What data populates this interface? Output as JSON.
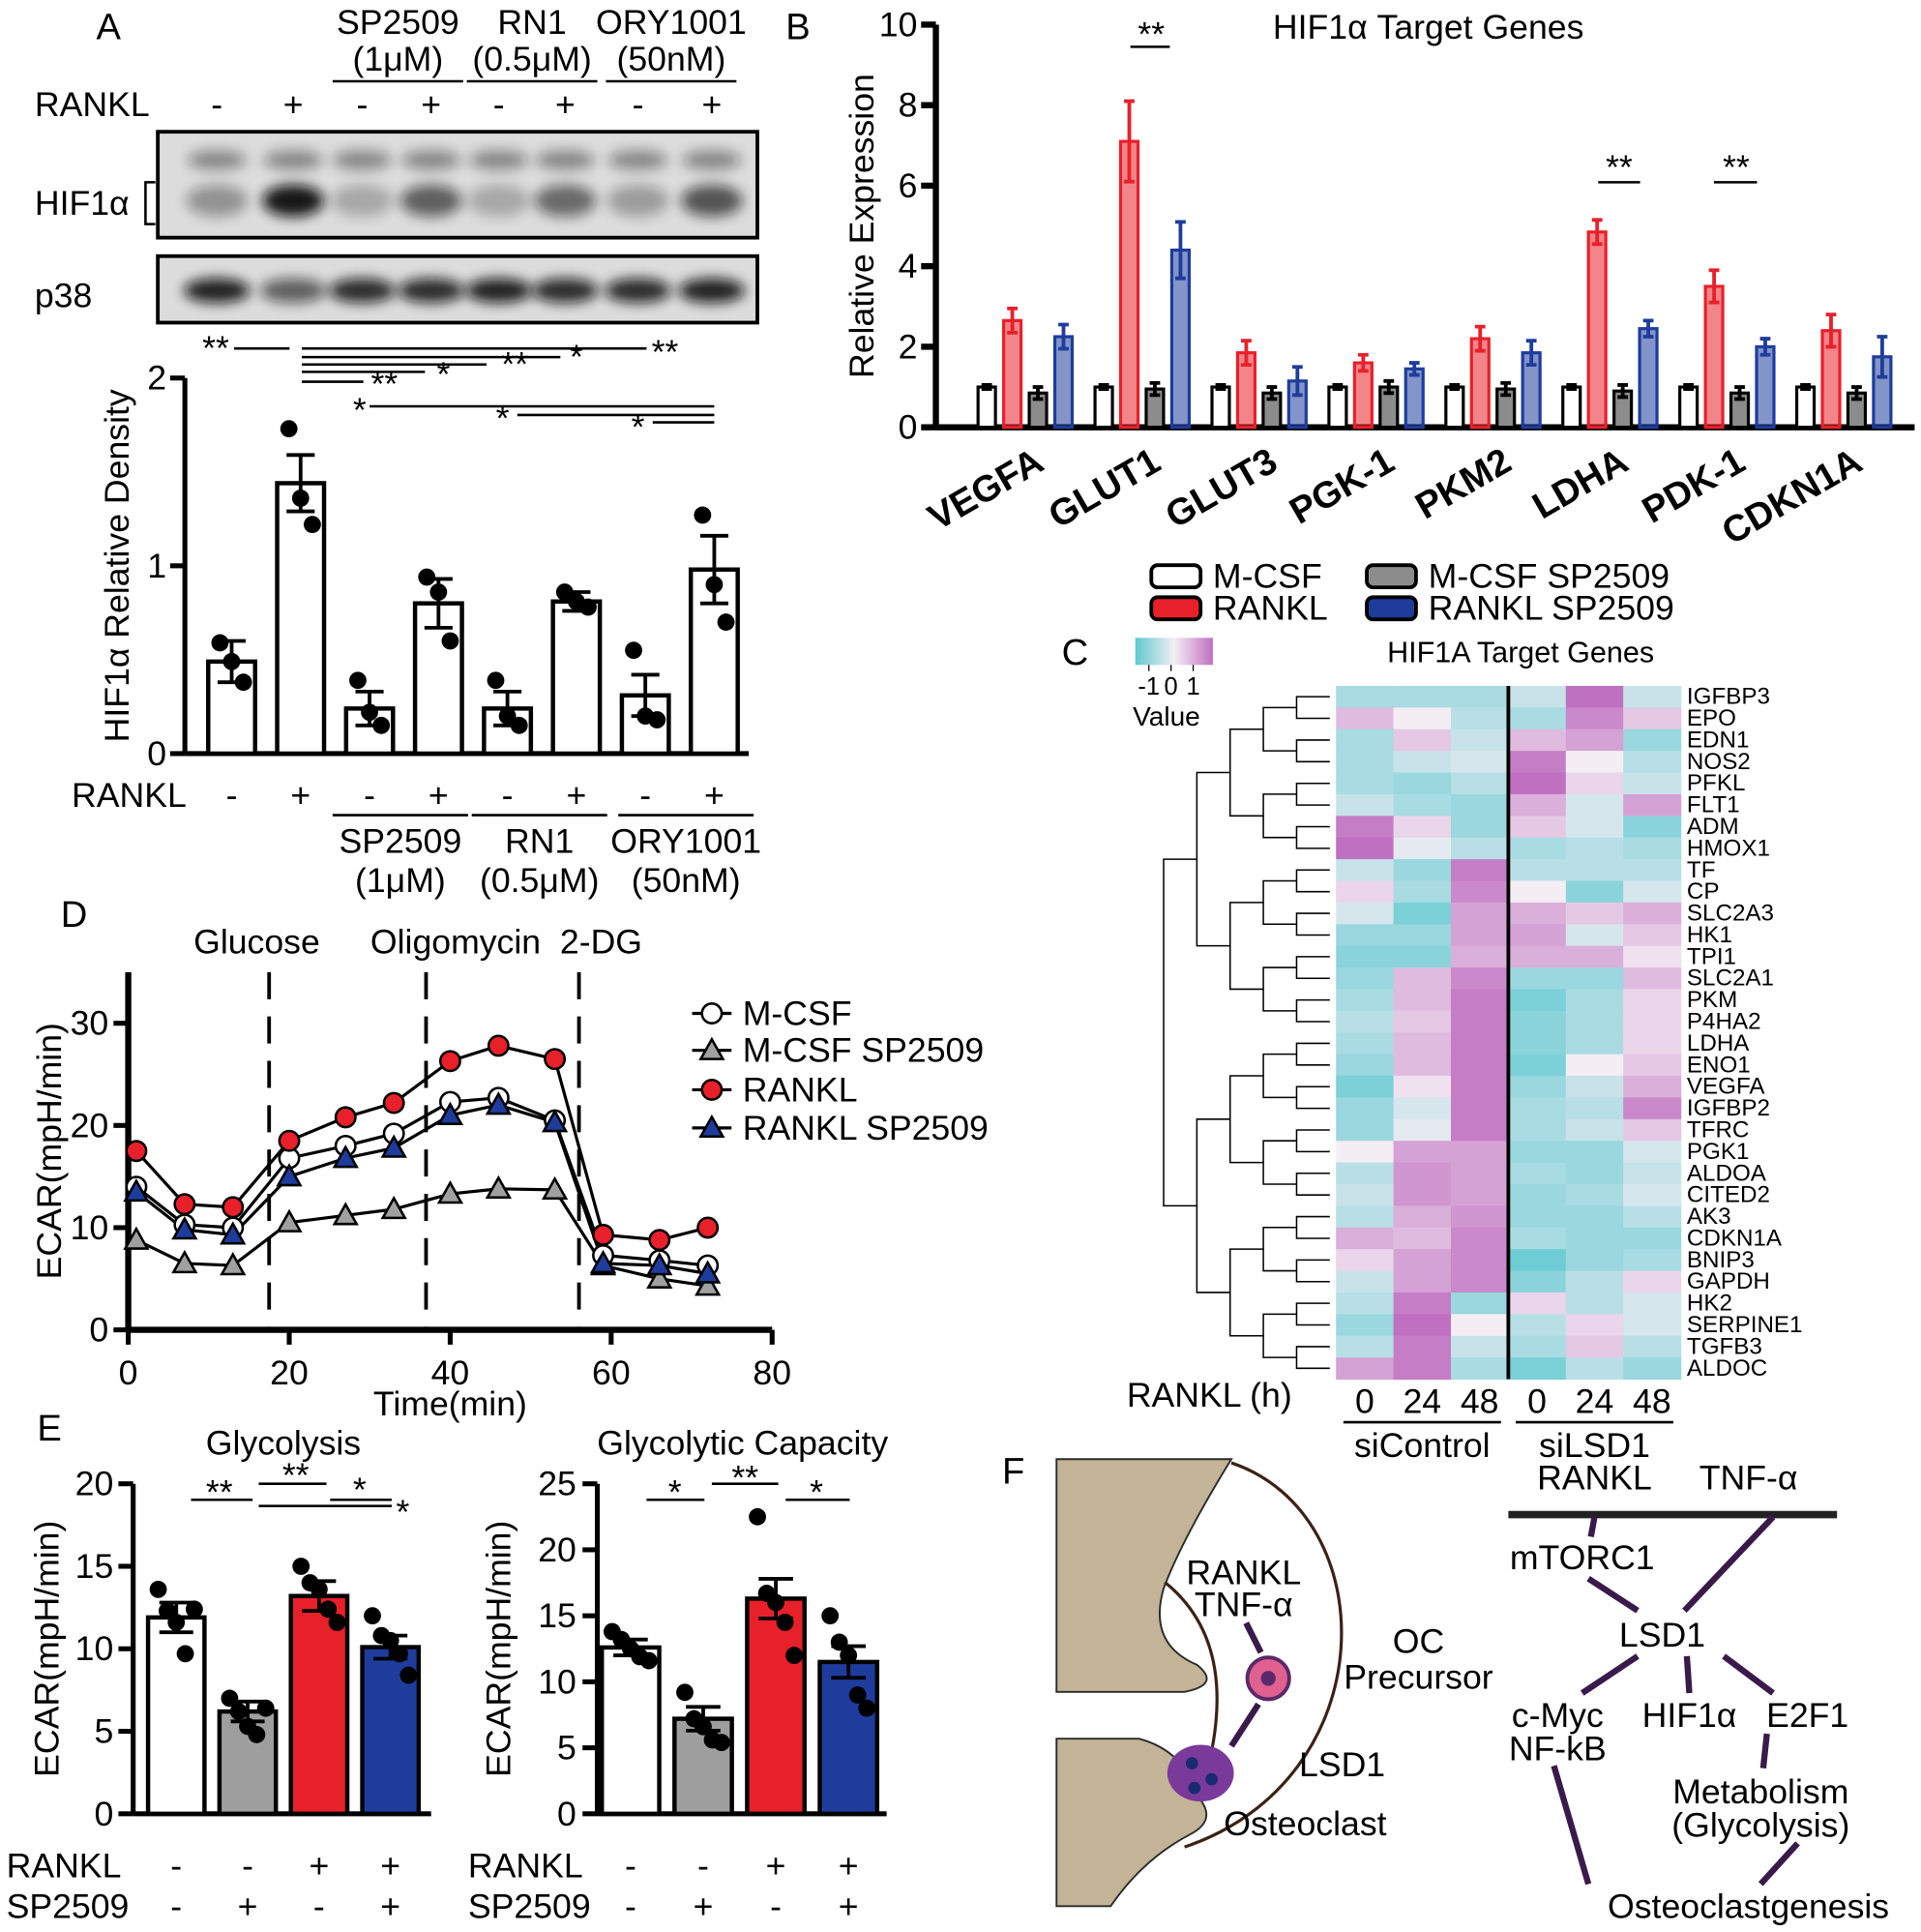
{
  "panel_labels": [
    "A",
    "B",
    "C",
    "D",
    "E",
    "F"
  ],
  "blot": {
    "lane_label": "RANKL",
    "lanes": [
      "-",
      "+",
      "-",
      "+",
      "-",
      "+",
      "-",
      "+"
    ],
    "treatments": [
      {
        "name": "SP2509",
        "dose": "(1μM)"
      },
      {
        "name": "RN1",
        "dose": "(0.5μM)"
      },
      {
        "name": "ORY1001",
        "dose": "(50nM)"
      }
    ],
    "bands": [
      "HIF1α",
      "p38"
    ]
  },
  "chart_data": [
    {
      "type": "bar",
      "ylabel": "HIF1α Relative Density",
      "row_label": "RANKL",
      "categories": [
        "-",
        "+",
        "-",
        "+",
        "-",
        "+",
        "-",
        "+"
      ],
      "groups": [
        {
          "name": "SP2509",
          "dose": "(1μM)"
        },
        {
          "name": "RN1",
          "dose": "(0.5μM)"
        },
        {
          "name": "ORY1001",
          "dose": "(50nM)"
        }
      ],
      "series": [
        {
          "color": "#ffffff",
          "values": [
            0.49,
            1.44,
            0.24,
            0.8,
            0.24,
            0.81,
            0.31,
            0.98
          ],
          "errors": [
            0.11,
            0.15,
            0.09,
            0.13,
            0.09,
            0.05,
            0.11,
            0.18
          ],
          "points": [
            [
              0.59,
              0.49,
              0.38
            ],
            [
              1.73,
              1.36,
              1.22
            ],
            [
              0.39,
              0.22,
              0.15
            ],
            [
              0.94,
              0.86,
              0.6
            ],
            [
              0.39,
              0.2,
              0.15
            ],
            [
              0.86,
              0.81,
              0.78
            ],
            [
              0.55,
              0.2,
              0.18
            ],
            [
              1.27,
              0.9,
              0.7
            ]
          ]
        }
      ],
      "ylim": [
        0,
        2
      ],
      "yticks": [
        0,
        1,
        2
      ],
      "significance": [
        "**",
        "**",
        "*",
        "**",
        "*",
        "**",
        "*",
        "*",
        "*"
      ]
    },
    {
      "type": "bar",
      "title": "HIF1α Target Genes",
      "ylabel": "Relative Expression",
      "categories": [
        "VEGFA",
        "GLUT1",
        "GLUT3",
        "PGK-1",
        "PKM2",
        "LDHA",
        "PDK-1",
        "CDKN1A"
      ],
      "series": [
        {
          "name": "M-CSF",
          "color": "#ffffff",
          "values": [
            1,
            1,
            1,
            1,
            1,
            1,
            1,
            1
          ],
          "errors": [
            0.05,
            0.05,
            0.05,
            0.05,
            0.05,
            0.05,
            0.05,
            0.05
          ]
        },
        {
          "name": "RANKL",
          "color": "#e8202a",
          "values": [
            2.65,
            7.1,
            1.85,
            1.6,
            2.2,
            4.85,
            3.5,
            2.4
          ],
          "errors": [
            0.3,
            1.0,
            0.3,
            0.2,
            0.3,
            0.3,
            0.4,
            0.4
          ]
        },
        {
          "name": "M-CSF SP2509",
          "color": "#8c8c8c",
          "values": [
            0.85,
            0.95,
            0.85,
            1.0,
            0.95,
            0.9,
            0.85,
            0.85
          ],
          "errors": [
            0.15,
            0.15,
            0.15,
            0.15,
            0.15,
            0.15,
            0.15,
            0.15
          ]
        },
        {
          "name": "RANKL SP2509",
          "color": "#1e3c9c",
          "values": [
            2.25,
            4.4,
            1.15,
            1.45,
            1.85,
            2.45,
            2.0,
            1.75
          ],
          "errors": [
            0.3,
            0.7,
            0.35,
            0.15,
            0.3,
            0.2,
            0.2,
            0.5
          ]
        }
      ],
      "ylim": [
        0,
        10
      ],
      "yticks": [
        0,
        2,
        4,
        6,
        8,
        10
      ],
      "significance": [
        "**",
        "**",
        "**"
      ]
    },
    {
      "type": "heatmap",
      "title": "HIF1A Target Genes",
      "rows": [
        "IGFBP3",
        "EPO",
        "EDN1",
        "NOS2",
        "PFKL",
        "FLT1",
        "ADM",
        "HMOX1",
        "TF",
        "CP",
        "SLC2A3",
        "HK1",
        "TPI1",
        "SLC2A1",
        "PKM",
        "P4HA2",
        "LDHA",
        "ENO1",
        "VEGFA",
        "IGFBP2",
        "TFRC",
        "PGK1",
        "ALDOA",
        "CITED2",
        "AK3",
        "CDKN1A",
        "BNIP3",
        "GAPDH",
        "HK2",
        "SERPINE1",
        "TGFB3",
        "ALDOC"
      ],
      "columns": [
        "0",
        "24",
        "48",
        "0",
        "24",
        "48"
      ],
      "column_title": "RANKL (h)",
      "column_groups": [
        "siControl",
        "siLSD1"
      ],
      "values": [
        [
          -0.5,
          -0.5,
          -0.5,
          -0.3,
          1,
          -0.3
        ],
        [
          0.4,
          0,
          -0.4,
          -0.5,
          0.8,
          0.3
        ],
        [
          -0.5,
          0.3,
          -0.3,
          0.4,
          0.6,
          -0.6
        ],
        [
          -0.5,
          -0.3,
          -0.2,
          0.9,
          0,
          -0.4
        ],
        [
          -0.5,
          -0.6,
          -0.4,
          1,
          0.2,
          -0.3
        ],
        [
          -0.3,
          -0.5,
          -0.6,
          0.5,
          -0.2,
          0.6
        ],
        [
          0.9,
          0.2,
          -0.6,
          0.3,
          -0.2,
          -0.7
        ],
        [
          1,
          -0.1,
          -0.4,
          -0.5,
          -0.4,
          -0.5
        ],
        [
          -0.3,
          -0.6,
          0.9,
          -0.4,
          -0.4,
          -0.4
        ],
        [
          0.2,
          -0.5,
          0.8,
          0,
          -0.7,
          -0.2
        ],
        [
          -0.2,
          -0.8,
          0.6,
          0.5,
          0.3,
          0.5
        ],
        [
          -0.6,
          -0.6,
          0.6,
          0.6,
          -0.2,
          0.3
        ],
        [
          -0.7,
          -0.7,
          0.5,
          0.5,
          0.5,
          0.1
        ],
        [
          -0.6,
          0.4,
          0.8,
          -0.6,
          -0.6,
          0.4
        ],
        [
          -0.5,
          0.4,
          0.9,
          -0.8,
          -0.5,
          0.2
        ],
        [
          -0.4,
          0.3,
          0.9,
          -0.7,
          -0.5,
          0.2
        ],
        [
          -0.5,
          0.4,
          0.9,
          -0.7,
          -0.5,
          0.2
        ],
        [
          -0.6,
          0.4,
          0.9,
          -0.8,
          0,
          0.3
        ],
        [
          -0.8,
          0.1,
          0.9,
          -0.6,
          -0.3,
          0.5
        ],
        [
          -0.6,
          -0.2,
          0.9,
          -0.5,
          -0.4,
          0.8
        ],
        [
          -0.6,
          -0.1,
          0.9,
          -0.5,
          -0.3,
          0.3
        ],
        [
          0,
          0.6,
          0.6,
          -0.6,
          -0.6,
          -0.2
        ],
        [
          -0.4,
          0.7,
          0.6,
          -0.5,
          -0.6,
          -0.3
        ],
        [
          -0.3,
          0.7,
          0.6,
          -0.6,
          -0.5,
          -0.2
        ],
        [
          -0.4,
          0.5,
          0.7,
          -0.6,
          -0.6,
          -0.4
        ],
        [
          0.5,
          0.4,
          0.8,
          -0.5,
          -0.6,
          -0.6
        ],
        [
          0.2,
          0.6,
          0.8,
          -0.9,
          -0.6,
          -0.5
        ],
        [
          -0.3,
          0.6,
          0.8,
          -0.7,
          -0.4,
          0.2
        ],
        [
          -0.4,
          0.9,
          -0.6,
          0.2,
          -0.4,
          -0.2
        ],
        [
          -0.6,
          1,
          0,
          -0.4,
          0.2,
          -0.2
        ],
        [
          -0.4,
          0.9,
          -0.3,
          -0.5,
          0.3,
          -0.4
        ],
        [
          0.6,
          0.9,
          -0.5,
          -0.8,
          -0.4,
          -0.6
        ]
      ],
      "clim": [
        -1,
        1
      ],
      "colorbar": {
        "ticks": [
          -1,
          0,
          1
        ],
        "label": "Value"
      }
    },
    {
      "type": "line",
      "xlabel": "Time(min)",
      "ylabel": "ECAR(mpH/min)",
      "x": [
        1,
        7,
        13,
        20,
        27,
        33,
        40,
        46,
        53,
        59,
        66,
        72
      ],
      "series": [
        {
          "name": "M-CSF",
          "color": "#ffffff",
          "marker": "circle",
          "values": [
            14,
            10.3,
            10,
            16.8,
            18,
            19.2,
            22.3,
            22.7,
            20.5,
            7.3,
            6.8,
            6.3
          ]
        },
        {
          "name": "M-CSF SP2509",
          "color": "#a0a0a0",
          "marker": "triangle",
          "values": [
            8.8,
            6.5,
            6.3,
            10.5,
            11.2,
            11.8,
            13.3,
            13.8,
            13.7,
            6.3,
            5,
            4.3
          ]
        },
        {
          "name": "RANKL",
          "color": "#e8202a",
          "marker": "circle",
          "values": [
            17.5,
            12.3,
            12,
            18.5,
            20.8,
            22.2,
            26.3,
            27.8,
            26.5,
            9.3,
            8.8,
            10
          ]
        },
        {
          "name": "RANKL SP2509",
          "color": "#1e3c9c",
          "marker": "triangle",
          "values": [
            13.5,
            9.8,
            9.3,
            15,
            16.8,
            17.8,
            21,
            22,
            20.3,
            6.5,
            6.3,
            5.5
          ]
        }
      ],
      "injections": [
        {
          "x": 17.5,
          "label": "Glucose"
        },
        {
          "x": 37,
          "label": "Oligomycin"
        },
        {
          "x": 56,
          "label": "2-DG"
        }
      ],
      "xlim": [
        0,
        80
      ],
      "xticks": [
        0,
        20,
        40,
        60,
        80
      ],
      "ylim": [
        0,
        35
      ],
      "yticks": [
        0,
        10,
        20,
        30
      ]
    },
    {
      "type": "bar",
      "title": "Glycolysis",
      "ylabel": "ECAR(mpH/min)",
      "rows": [
        {
          "label": "RANKL",
          "signs": [
            "-",
            "-",
            "+",
            "+"
          ]
        },
        {
          "label": "SP2509",
          "signs": [
            "-",
            "+",
            "-",
            "+"
          ]
        }
      ],
      "series": [
        {
          "colors": [
            "#ffffff",
            "#9e9e9e",
            "#e8202a",
            "#1e3c9c"
          ],
          "values": [
            11.9,
            6.2,
            13.2,
            10.1
          ],
          "errors": [
            0.9,
            0.6,
            0.9,
            0.7
          ],
          "points": [
            [
              13.6,
              12.3,
              11.6,
              9.7,
              12.4
            ],
            [
              7,
              6.2,
              5.3,
              4.8,
              6.4
            ],
            [
              15,
              14,
              13.6,
              12.4,
              11.6
            ],
            [
              12,
              10.8,
              10.5,
              9.7,
              8.4
            ]
          ]
        }
      ],
      "ylim": [
        0,
        20
      ],
      "yticks": [
        0,
        5,
        10,
        15,
        20
      ],
      "significance": [
        "**",
        "**",
        "*",
        "*"
      ]
    },
    {
      "type": "bar",
      "title": "Glycolytic Capacity",
      "ylabel": "ECAR(mpH/min)",
      "rows": [
        {
          "label": "RANKL",
          "signs": [
            "-",
            "-",
            "+",
            "+"
          ]
        },
        {
          "label": "SP2509",
          "signs": [
            "-",
            "+",
            "-",
            "+"
          ]
        }
      ],
      "series": [
        {
          "colors": [
            "#ffffff",
            "#9e9e9e",
            "#e8202a",
            "#1e3c9c"
          ],
          "values": [
            12.6,
            7.2,
            16.3,
            11.5
          ],
          "errors": [
            0.6,
            0.9,
            1.5,
            1.2
          ],
          "points": [
            [
              13.8,
              13.2,
              12.5,
              11.9,
              11.6
            ],
            [
              9.2,
              7.2,
              6.6,
              5.6,
              5.4
            ],
            [
              22.5,
              16.7,
              16,
              14.5,
              12
            ],
            [
              15,
              13,
              12,
              9,
              8
            ]
          ]
        }
      ],
      "ylim": [
        0,
        25
      ],
      "yticks": [
        0,
        5,
        10,
        15,
        20,
        25
      ],
      "significance": [
        "*",
        "**",
        "*"
      ]
    }
  ],
  "diagram": {
    "left": {
      "signals": [
        "RANKL",
        "TNF-α"
      ],
      "precursor": [
        "OC",
        "Precursor"
      ],
      "enzyme": "LSD1",
      "cell": "Osteoclast"
    },
    "right": {
      "inputs": [
        "RANKL",
        "TNF-α"
      ],
      "mtorc1": "mTORC1",
      "lsd1": "LSD1",
      "targets": [
        "c-Myc",
        "NF-kB",
        "HIF1α",
        "E2F1"
      ],
      "metabolism": [
        "Metabolism",
        "(Glycolysis)"
      ],
      "outcome": "Osteoclastgenesis"
    }
  }
}
